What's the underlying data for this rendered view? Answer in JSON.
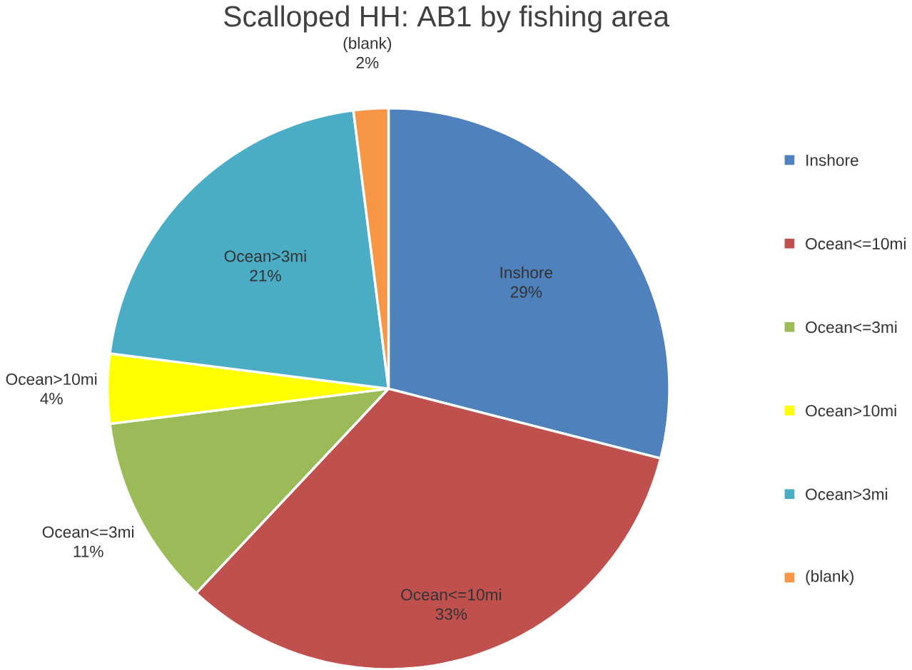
{
  "chart_data": {
    "type": "pie",
    "title": "Scalloped HH: AB1 by fishing area",
    "categories": [
      "Inshore",
      "Ocean<=10mi",
      "Ocean<=3mi",
      "Ocean>10mi",
      "Ocean>3mi",
      "(blank)"
    ],
    "values": [
      29,
      33,
      11,
      4,
      21,
      2
    ],
    "value_labels": [
      "29%",
      "33%",
      "11%",
      "4%",
      "21%",
      "2%"
    ],
    "colors": [
      "#4f81bd",
      "#c0504d",
      "#9bbb59",
      "#ffff00",
      "#4bacc6",
      "#f79646"
    ],
    "legend": "right"
  }
}
